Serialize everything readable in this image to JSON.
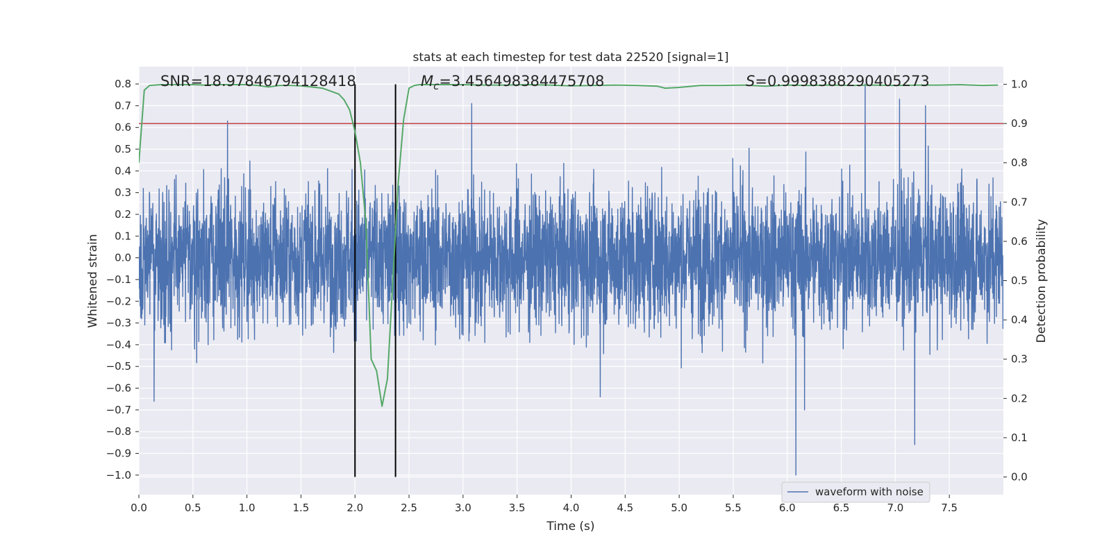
{
  "chart_data": {
    "type": "line",
    "title": "stats at each timestep for test data 22520 [signal=1]",
    "xlabel": "Time (s)",
    "ylabel_left": "Whitened strain",
    "ylabel_right": "Detection probability",
    "xlim": [
      0.0,
      8.0
    ],
    "ylim_left": [
      -1.09,
      0.88
    ],
    "ylim_right": [
      -0.045,
      1.045
    ],
    "x_ticks": [
      0.0,
      0.5,
      1.0,
      1.5,
      2.0,
      2.5,
      3.0,
      3.5,
      4.0,
      4.5,
      5.0,
      5.5,
      6.0,
      6.5,
      7.0,
      7.5
    ],
    "x_tick_labels": [
      "0.0",
      "0.5",
      "1.0",
      "1.5",
      "2.0",
      "2.5",
      "3.0",
      "3.5",
      "4.0",
      "4.5",
      "5.0",
      "5.5",
      "6.0",
      "6.5",
      "7.0",
      "7.5"
    ],
    "y_left_ticks": [
      0.8,
      0.7,
      0.6,
      0.5,
      0.4,
      0.3,
      0.2,
      0.1,
      0.0,
      -0.1,
      -0.2,
      -0.3,
      -0.4,
      -0.5,
      -0.6,
      -0.7,
      -0.8,
      -0.9,
      -1.0
    ],
    "y_left_tick_labels": [
      "0.8",
      "0.7",
      "0.6",
      "0.5",
      "0.4",
      "0.3",
      "0.2",
      "0.1",
      "0.0",
      "−0.1",
      "−0.2",
      "−0.3",
      "−0.4",
      "−0.5",
      "−0.6",
      "−0.7",
      "−0.8",
      "−0.9",
      "−1.0"
    ],
    "y_right_ticks": [
      1.0,
      0.9,
      0.8,
      0.7,
      0.6,
      0.5,
      0.4,
      0.3,
      0.2,
      0.1,
      0.0
    ],
    "y_right_tick_labels": [
      "1.0",
      "0.9",
      "0.8",
      "0.7",
      "0.6",
      "0.5",
      "0.4",
      "0.3",
      "0.2",
      "0.1",
      "0.0"
    ],
    "threshold": {
      "axis": "right",
      "value": 0.9,
      "color": "#c44e52"
    },
    "event_markers": {
      "x": [
        2.0,
        2.375
      ],
      "color": "#000000"
    },
    "annotations": {
      "snr": "SNR=18.97846794128418",
      "mc_symbol": "M",
      "mc_sub": "c",
      "mc_value": "=3.456498384475708",
      "s_symbol": "S",
      "s_value": "=0.9998388290405273"
    },
    "legend": {
      "label": "waveform with noise",
      "loc": "lower right"
    },
    "waveform": {
      "name": "waveform with noise",
      "color": "#4c72b0",
      "description": "dense whitened strain noise, approx ±0.25 with spikes",
      "notable_spikes": [
        {
          "x": 0.14,
          "y": -0.66
        },
        {
          "x": 0.82,
          "y": 0.63
        },
        {
          "x": 3.08,
          "y": 0.71
        },
        {
          "x": 4.27,
          "y": -0.64
        },
        {
          "x": 6.08,
          "y": -1.0
        },
        {
          "x": 6.16,
          "y": -0.7
        },
        {
          "x": 6.72,
          "y": 0.8
        },
        {
          "x": 7.04,
          "y": 0.73
        },
        {
          "x": 7.18,
          "y": -0.86
        },
        {
          "x": 7.28,
          "y": 0.7
        }
      ]
    },
    "series": [
      {
        "name": "Detection probability",
        "color": "#55a868",
        "axis": "right",
        "x": [
          0.0,
          0.05,
          0.1,
          0.15,
          0.2,
          0.3,
          0.4,
          0.5,
          0.6,
          0.7,
          0.8,
          0.9,
          1.0,
          1.1,
          1.2,
          1.3,
          1.4,
          1.5,
          1.6,
          1.7,
          1.75,
          1.8,
          1.85,
          1.9,
          1.95,
          2.0,
          2.05,
          2.1,
          2.15,
          2.2,
          2.25,
          2.3,
          2.35,
          2.4,
          2.45,
          2.5,
          2.55,
          2.6,
          2.7,
          2.8,
          3.0,
          3.2,
          3.4,
          3.6,
          3.8,
          4.0,
          4.2,
          4.4,
          4.6,
          4.8,
          4.87,
          5.0,
          5.2,
          5.4,
          5.6,
          5.8,
          6.0,
          6.2,
          6.4,
          6.6,
          6.8,
          7.0,
          7.2,
          7.4,
          7.6,
          7.8,
          7.95
        ],
        "y": [
          0.8,
          0.985,
          0.997,
          0.998,
          0.999,
          0.999,
          0.999,
          0.999,
          0.998,
          0.999,
          0.999,
          0.999,
          0.999,
          0.997,
          0.993,
          0.997,
          0.997,
          0.996,
          0.993,
          0.99,
          0.985,
          0.98,
          0.975,
          0.96,
          0.935,
          0.88,
          0.8,
          0.65,
          0.3,
          0.27,
          0.18,
          0.25,
          0.5,
          0.75,
          0.91,
          0.99,
          0.997,
          0.999,
          0.999,
          0.999,
          0.999,
          0.998,
          0.998,
          0.999,
          0.998,
          0.996,
          0.997,
          0.998,
          0.997,
          0.995,
          0.99,
          0.992,
          0.997,
          0.997,
          0.998,
          0.995,
          0.998,
          0.997,
          0.998,
          0.997,
          0.998,
          0.997,
          0.998,
          0.998,
          0.999,
          0.997,
          0.998
        ]
      }
    ]
  }
}
